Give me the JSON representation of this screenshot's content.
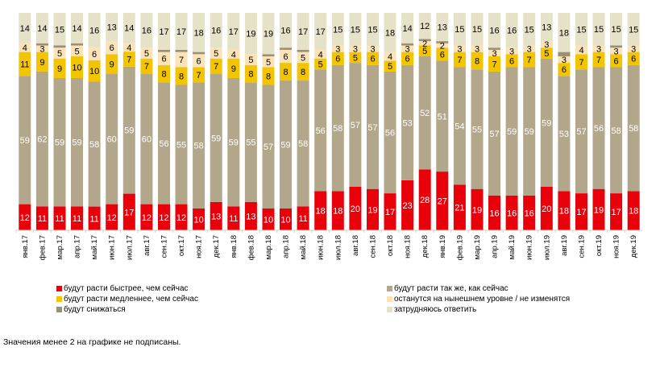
{
  "chart_data": {
    "type": "bar",
    "stacked": true,
    "normalized_percent": true,
    "title": "",
    "xlabel": "",
    "ylabel": "",
    "ylim": [
      0,
      100
    ],
    "grid": false,
    "legend_position": "bottom",
    "categories": [
      "янв.17",
      "фев.17",
      "мар.17",
      "апр.17",
      "май.17",
      "июн.17",
      "июл.17",
      "авг.17",
      "сен.17",
      "окт.17",
      "ноя.17",
      "дек.17",
      "янв.18",
      "фев.18",
      "мар.18",
      "апр.18",
      "май.18",
      "июн.18",
      "июл.18",
      "авг.18",
      "сен.18",
      "окт.18",
      "ноя.18",
      "дек.18",
      "янв.19",
      "фев.19",
      "мар.19",
      "апр.19",
      "май.19",
      "июн.19",
      "июл.19",
      "авг.19",
      "сен.19",
      "окт.19",
      "ноя.19",
      "дек.19"
    ],
    "series": [
      {
        "key": "faster",
        "name": "будут расти быстрее, чем сейчас",
        "color": "#e8000a",
        "label_color": "#ffffff",
        "values": [
          12,
          11,
          11,
          11,
          11,
          12,
          17,
          12,
          12,
          12,
          10,
          13,
          11,
          13,
          10,
          10,
          11,
          18,
          18,
          20,
          19,
          17,
          23,
          28,
          27,
          21,
          19,
          16,
          16,
          16,
          20,
          18,
          17,
          19,
          17,
          18
        ]
      },
      {
        "key": "same",
        "name": "будут расти так же, как сейчас",
        "color": "#b3a78b",
        "label_color": "#ffffff",
        "values": [
          59,
          62,
          59,
          59,
          58,
          60,
          59,
          60,
          56,
          55,
          58,
          59,
          59,
          55,
          57,
          59,
          58,
          56,
          58,
          57,
          57,
          56,
          53,
          52,
          51,
          54,
          55,
          57,
          59,
          59,
          59,
          53,
          57,
          56,
          58,
          58
        ]
      },
      {
        "key": "slower",
        "name": "будут расти медленнее, чем сейчас",
        "color": "#f2c500",
        "label_color": "#000000",
        "values": [
          11,
          9,
          9,
          10,
          10,
          9,
          7,
          7,
          8,
          8,
          7,
          7,
          9,
          8,
          8,
          8,
          8,
          5,
          6,
          5,
          6,
          5,
          6,
          5,
          6,
          7,
          8,
          7,
          6,
          7,
          5,
          6,
          7,
          7,
          6,
          6
        ]
      },
      {
        "key": "unchanged",
        "name": "останутся на нынешнем уровне / не изменятся",
        "color": "#fbe3b7",
        "label_color": "#000000",
        "values": [
          4,
          3,
          5,
          5,
          6,
          6,
          4,
          5,
          6,
          7,
          6,
          5,
          4,
          5,
          5,
          6,
          5,
          4,
          3,
          3,
          3,
          4,
          3,
          2,
          2,
          3,
          3,
          3,
          3,
          3,
          3,
          3,
          4,
          3,
          3,
          3
        ]
      },
      {
        "key": "decline",
        "name": "будут снижаться",
        "color": "#9b8f74",
        "label_color": "#000000",
        "values": [
          null,
          null,
          null,
          null,
          null,
          null,
          null,
          null,
          null,
          null,
          null,
          null,
          null,
          null,
          null,
          null,
          null,
          null,
          null,
          null,
          null,
          null,
          null,
          null,
          null,
          null,
          null,
          null,
          null,
          null,
          null,
          null,
          null,
          null,
          null,
          null
        ]
      },
      {
        "key": "dontknow",
        "name": "затрудняюсь ответить",
        "color": "#e6e2c8",
        "label_color": "#000000",
        "values": [
          14,
          14,
          15,
          14,
          16,
          13,
          14,
          16,
          17,
          17,
          18,
          16,
          17,
          19,
          19,
          16,
          17,
          17,
          15,
          15,
          15,
          18,
          14,
          12,
          13,
          15,
          15,
          16,
          16,
          15,
          13,
          18,
          15,
          15,
          15,
          15
        ]
      }
    ],
    "stack_order_bottom_to_top": [
      "faster",
      "same",
      "slower",
      "unchanged",
      "decline",
      "dontknow"
    ],
    "annotations": []
  },
  "legend": {
    "items": [
      {
        "label": "будут расти быстрее, чем сейчас",
        "color": "#e8000a"
      },
      {
        "label": "будут расти так же, как сейчас",
        "color": "#b3a78b"
      },
      {
        "label": "будут расти медленнее, чем сейчас",
        "color": "#f2c500"
      },
      {
        "label": "останутся на нынешнем уровне / не изменятся",
        "color": "#fbe3b7"
      },
      {
        "label": "будут снижаться",
        "color": "#9b8f74"
      },
      {
        "label": "затрудняюсь ответить",
        "color": "#e6e2c8"
      }
    ]
  },
  "footnote": "Значения менее 2 на графике не подписаны."
}
